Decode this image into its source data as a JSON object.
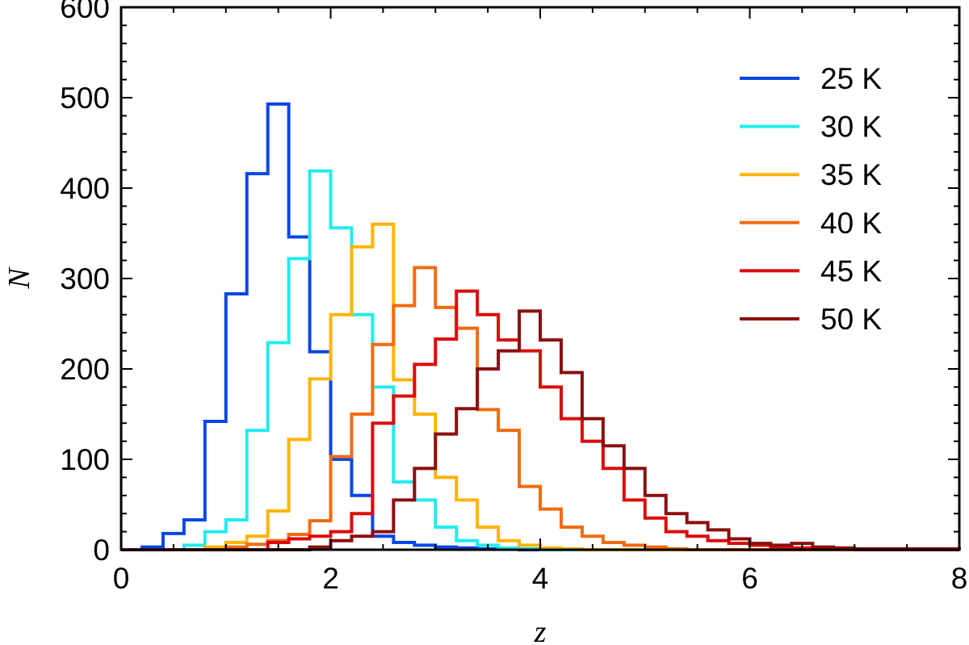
{
  "chart_data": {
    "type": "histogram",
    "title": "",
    "xlabel": "z",
    "ylabel": "N",
    "xlim": [
      0,
      8
    ],
    "ylim": [
      0,
      600
    ],
    "x_ticks": [
      0,
      2,
      4,
      6,
      8
    ],
    "y_ticks": [
      0,
      100,
      200,
      300,
      400,
      500,
      600
    ],
    "grid": false,
    "legend_position": "top-right",
    "bin_edges": [
      0.0,
      0.2,
      0.4,
      0.6,
      0.8,
      1.0,
      1.2,
      1.4,
      1.6,
      1.8,
      2.0,
      2.2,
      2.4,
      2.6,
      2.8,
      3.0,
      3.2,
      3.4,
      3.6,
      3.8,
      4.0,
      4.2,
      4.4,
      4.6,
      4.8,
      5.0,
      5.2,
      5.4,
      5.6,
      5.8,
      6.0,
      6.2,
      6.4,
      6.6,
      6.8,
      7.0,
      7.2,
      7.4,
      7.6,
      7.8,
      8.0
    ],
    "series": [
      {
        "name": "25 K",
        "color": "#0a46e6",
        "values": [
          0,
          3,
          18,
          33,
          142,
          283,
          416,
          493,
          346,
          219,
          100,
          60,
          15,
          8,
          5,
          3,
          2,
          1,
          1,
          0,
          0,
          0,
          0,
          0,
          0,
          0,
          0,
          0,
          0,
          0,
          0,
          0,
          0,
          0,
          0,
          0,
          0,
          0,
          0,
          0
        ]
      },
      {
        "name": "30 K",
        "color": "#22ecec",
        "values": [
          0,
          0,
          0,
          5,
          20,
          33,
          132,
          229,
          322,
          419,
          356,
          260,
          180,
          75,
          55,
          25,
          10,
          5,
          2,
          1,
          0,
          0,
          0,
          0,
          0,
          0,
          0,
          0,
          0,
          0,
          0,
          0,
          0,
          0,
          0,
          0,
          0,
          0,
          0,
          0
        ]
      },
      {
        "name": "35 K",
        "color": "#ffb300",
        "values": [
          0,
          0,
          0,
          0,
          3,
          8,
          15,
          43,
          122,
          189,
          260,
          335,
          360,
          188,
          150,
          80,
          55,
          25,
          10,
          5,
          2,
          1,
          0,
          0,
          0,
          0,
          0,
          0,
          0,
          0,
          0,
          0,
          0,
          0,
          0,
          0,
          0,
          0,
          0,
          0
        ]
      },
      {
        "name": "40 K",
        "color": "#f26b10",
        "values": [
          0,
          0,
          0,
          0,
          0,
          3,
          6,
          10,
          17,
          32,
          103,
          150,
          227,
          270,
          312,
          268,
          245,
          155,
          132,
          70,
          45,
          25,
          15,
          8,
          5,
          3,
          1,
          0,
          0,
          0,
          0,
          0,
          0,
          0,
          0,
          0,
          0,
          0,
          0,
          0
        ]
      },
      {
        "name": "45 K",
        "color": "#dd0a0a",
        "values": [
          0,
          0,
          0,
          0,
          0,
          0,
          0,
          8,
          12,
          15,
          20,
          40,
          140,
          170,
          205,
          233,
          286,
          260,
          232,
          220,
          180,
          145,
          120,
          90,
          55,
          35,
          20,
          15,
          10,
          7,
          5,
          3,
          2,
          1,
          1,
          0,
          0,
          0,
          0,
          0
        ]
      },
      {
        "name": "50 K",
        "color": "#8b0f0f",
        "values": [
          0,
          0,
          0,
          0,
          0,
          0,
          0,
          0,
          0,
          3,
          10,
          15,
          20,
          55,
          90,
          128,
          156,
          200,
          220,
          264,
          232,
          196,
          145,
          115,
          90,
          60,
          40,
          30,
          22,
          12,
          7,
          5,
          7,
          3,
          2,
          1,
          1,
          1,
          1,
          1
        ]
      }
    ]
  }
}
